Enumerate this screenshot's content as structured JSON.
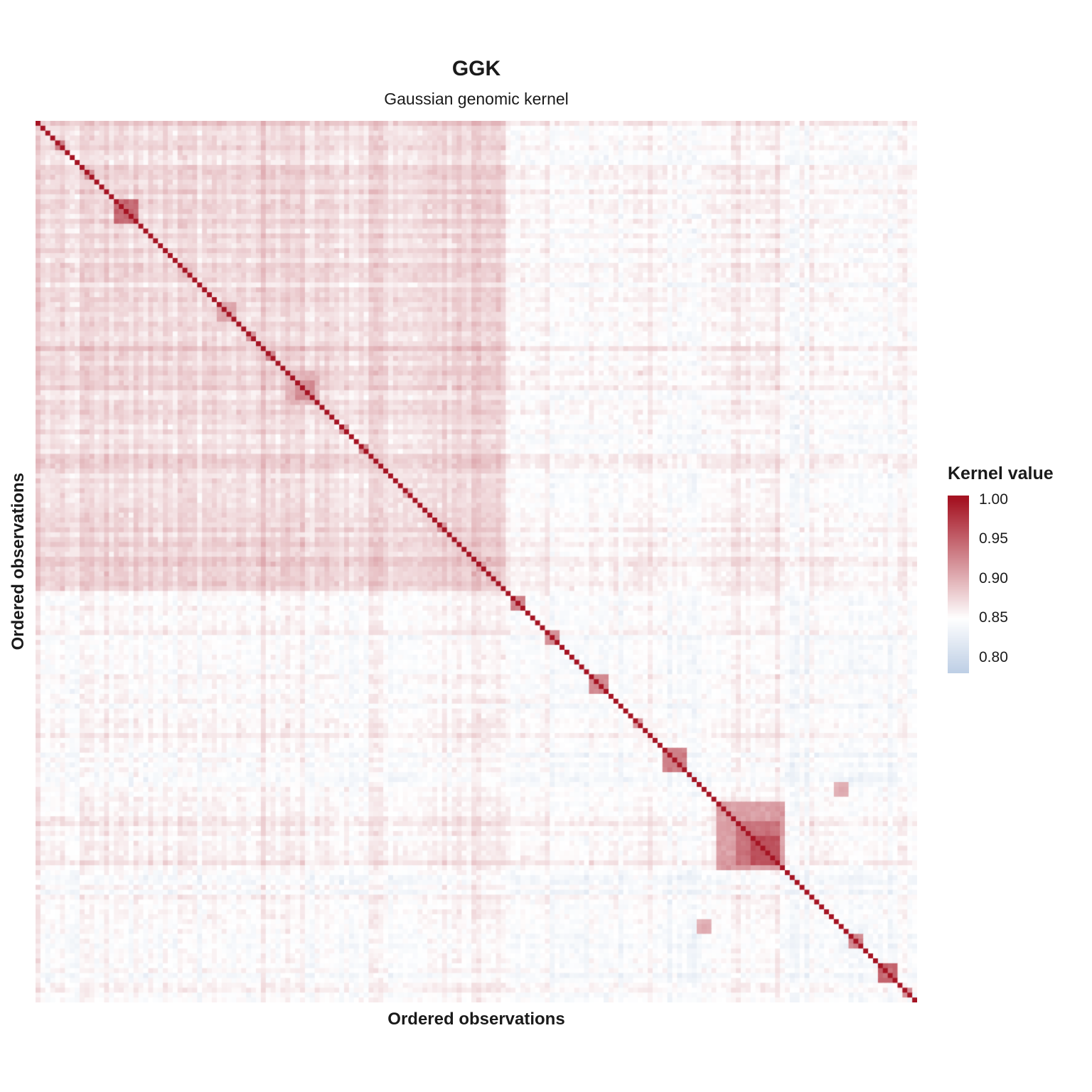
{
  "title": "GGK",
  "subtitle": "Gaussian genomic kernel",
  "chart_data": {
    "type": "heatmap",
    "title": "GGK",
    "subtitle": "Gaussian genomic kernel",
    "xlabel": "Ordered observations",
    "ylabel": "Ordered observations",
    "legend": {
      "title": "Kernel value",
      "position": "right",
      "ticks": [
        "1.00",
        "0.95",
        "0.90",
        "0.85",
        "0.80"
      ],
      "tick_values": [
        1.0,
        0.95,
        0.9,
        0.85,
        0.8
      ]
    },
    "colorscale": {
      "low_value": 0.76,
      "low_color": "#aac0dd",
      "mid_value": 0.85,
      "mid_color": "#ffffff",
      "high_value": 1.0,
      "high_color": "#a51423"
    },
    "value_range": [
      0.78,
      1.0
    ],
    "grid": false,
    "matrix": {
      "n": 180,
      "seed": 7,
      "diagonal_value": 1.0,
      "groups": [
        {
          "start": 0,
          "end": 95,
          "within": 0.872
        },
        {
          "start": 96,
          "end": 179,
          "within": 0.849
        }
      ],
      "between_value": 0.852,
      "observation_noise_sd": 0.011,
      "cell_noise_sd": 0.004,
      "bands": [
        {
          "start": 80,
          "end": 95,
          "offset": 0.005
        },
        {
          "start": 87,
          "end": 95,
          "offset": 0.01
        },
        {
          "start": 120,
          "end": 138,
          "offset": 0.003
        },
        {
          "start": 139,
          "end": 152,
          "offset": 0.007
        }
      ],
      "clusters": [
        {
          "start": 4,
          "end": 5,
          "value": 0.93
        },
        {
          "start": 10,
          "end": 11,
          "value": 0.92
        },
        {
          "start": 16,
          "end": 20,
          "value": 0.945
        },
        {
          "start": 30,
          "end": 31,
          "value": 0.9
        },
        {
          "start": 37,
          "end": 40,
          "value": 0.905
        },
        {
          "start": 43,
          "end": 44,
          "value": 0.92
        },
        {
          "start": 47,
          "end": 48,
          "value": 0.93
        },
        {
          "start": 51,
          "end": 57,
          "value": 0.9
        },
        {
          "start": 53,
          "end": 56,
          "value": 0.925
        },
        {
          "start": 62,
          "end": 63,
          "value": 0.91
        },
        {
          "start": 66,
          "end": 67,
          "value": 0.92
        },
        {
          "start": 75,
          "end": 76,
          "value": 0.9
        },
        {
          "start": 82,
          "end": 83,
          "value": 0.915
        },
        {
          "start": 90,
          "end": 91,
          "value": 0.91
        },
        {
          "start": 97,
          "end": 99,
          "value": 0.93
        },
        {
          "start": 104,
          "end": 106,
          "value": 0.92
        },
        {
          "start": 113,
          "end": 116,
          "value": 0.925
        },
        {
          "start": 122,
          "end": 123,
          "value": 0.915
        },
        {
          "start": 128,
          "end": 132,
          "value": 0.93
        },
        {
          "start": 139,
          "end": 152,
          "value": 0.912
        },
        {
          "start": 143,
          "end": 151,
          "value": 0.94
        },
        {
          "start": 146,
          "end": 151,
          "value": 0.962
        },
        {
          "start": 166,
          "end": 168,
          "value": 0.93
        },
        {
          "start": 172,
          "end": 175,
          "value": 0.945
        },
        {
          "start": 177,
          "end": 178,
          "value": 0.92
        }
      ],
      "off_diagonal_blocks": [
        {
          "rows": [
            163,
            165
          ],
          "cols": [
            135,
            137
          ],
          "value": 0.9
        }
      ]
    }
  }
}
